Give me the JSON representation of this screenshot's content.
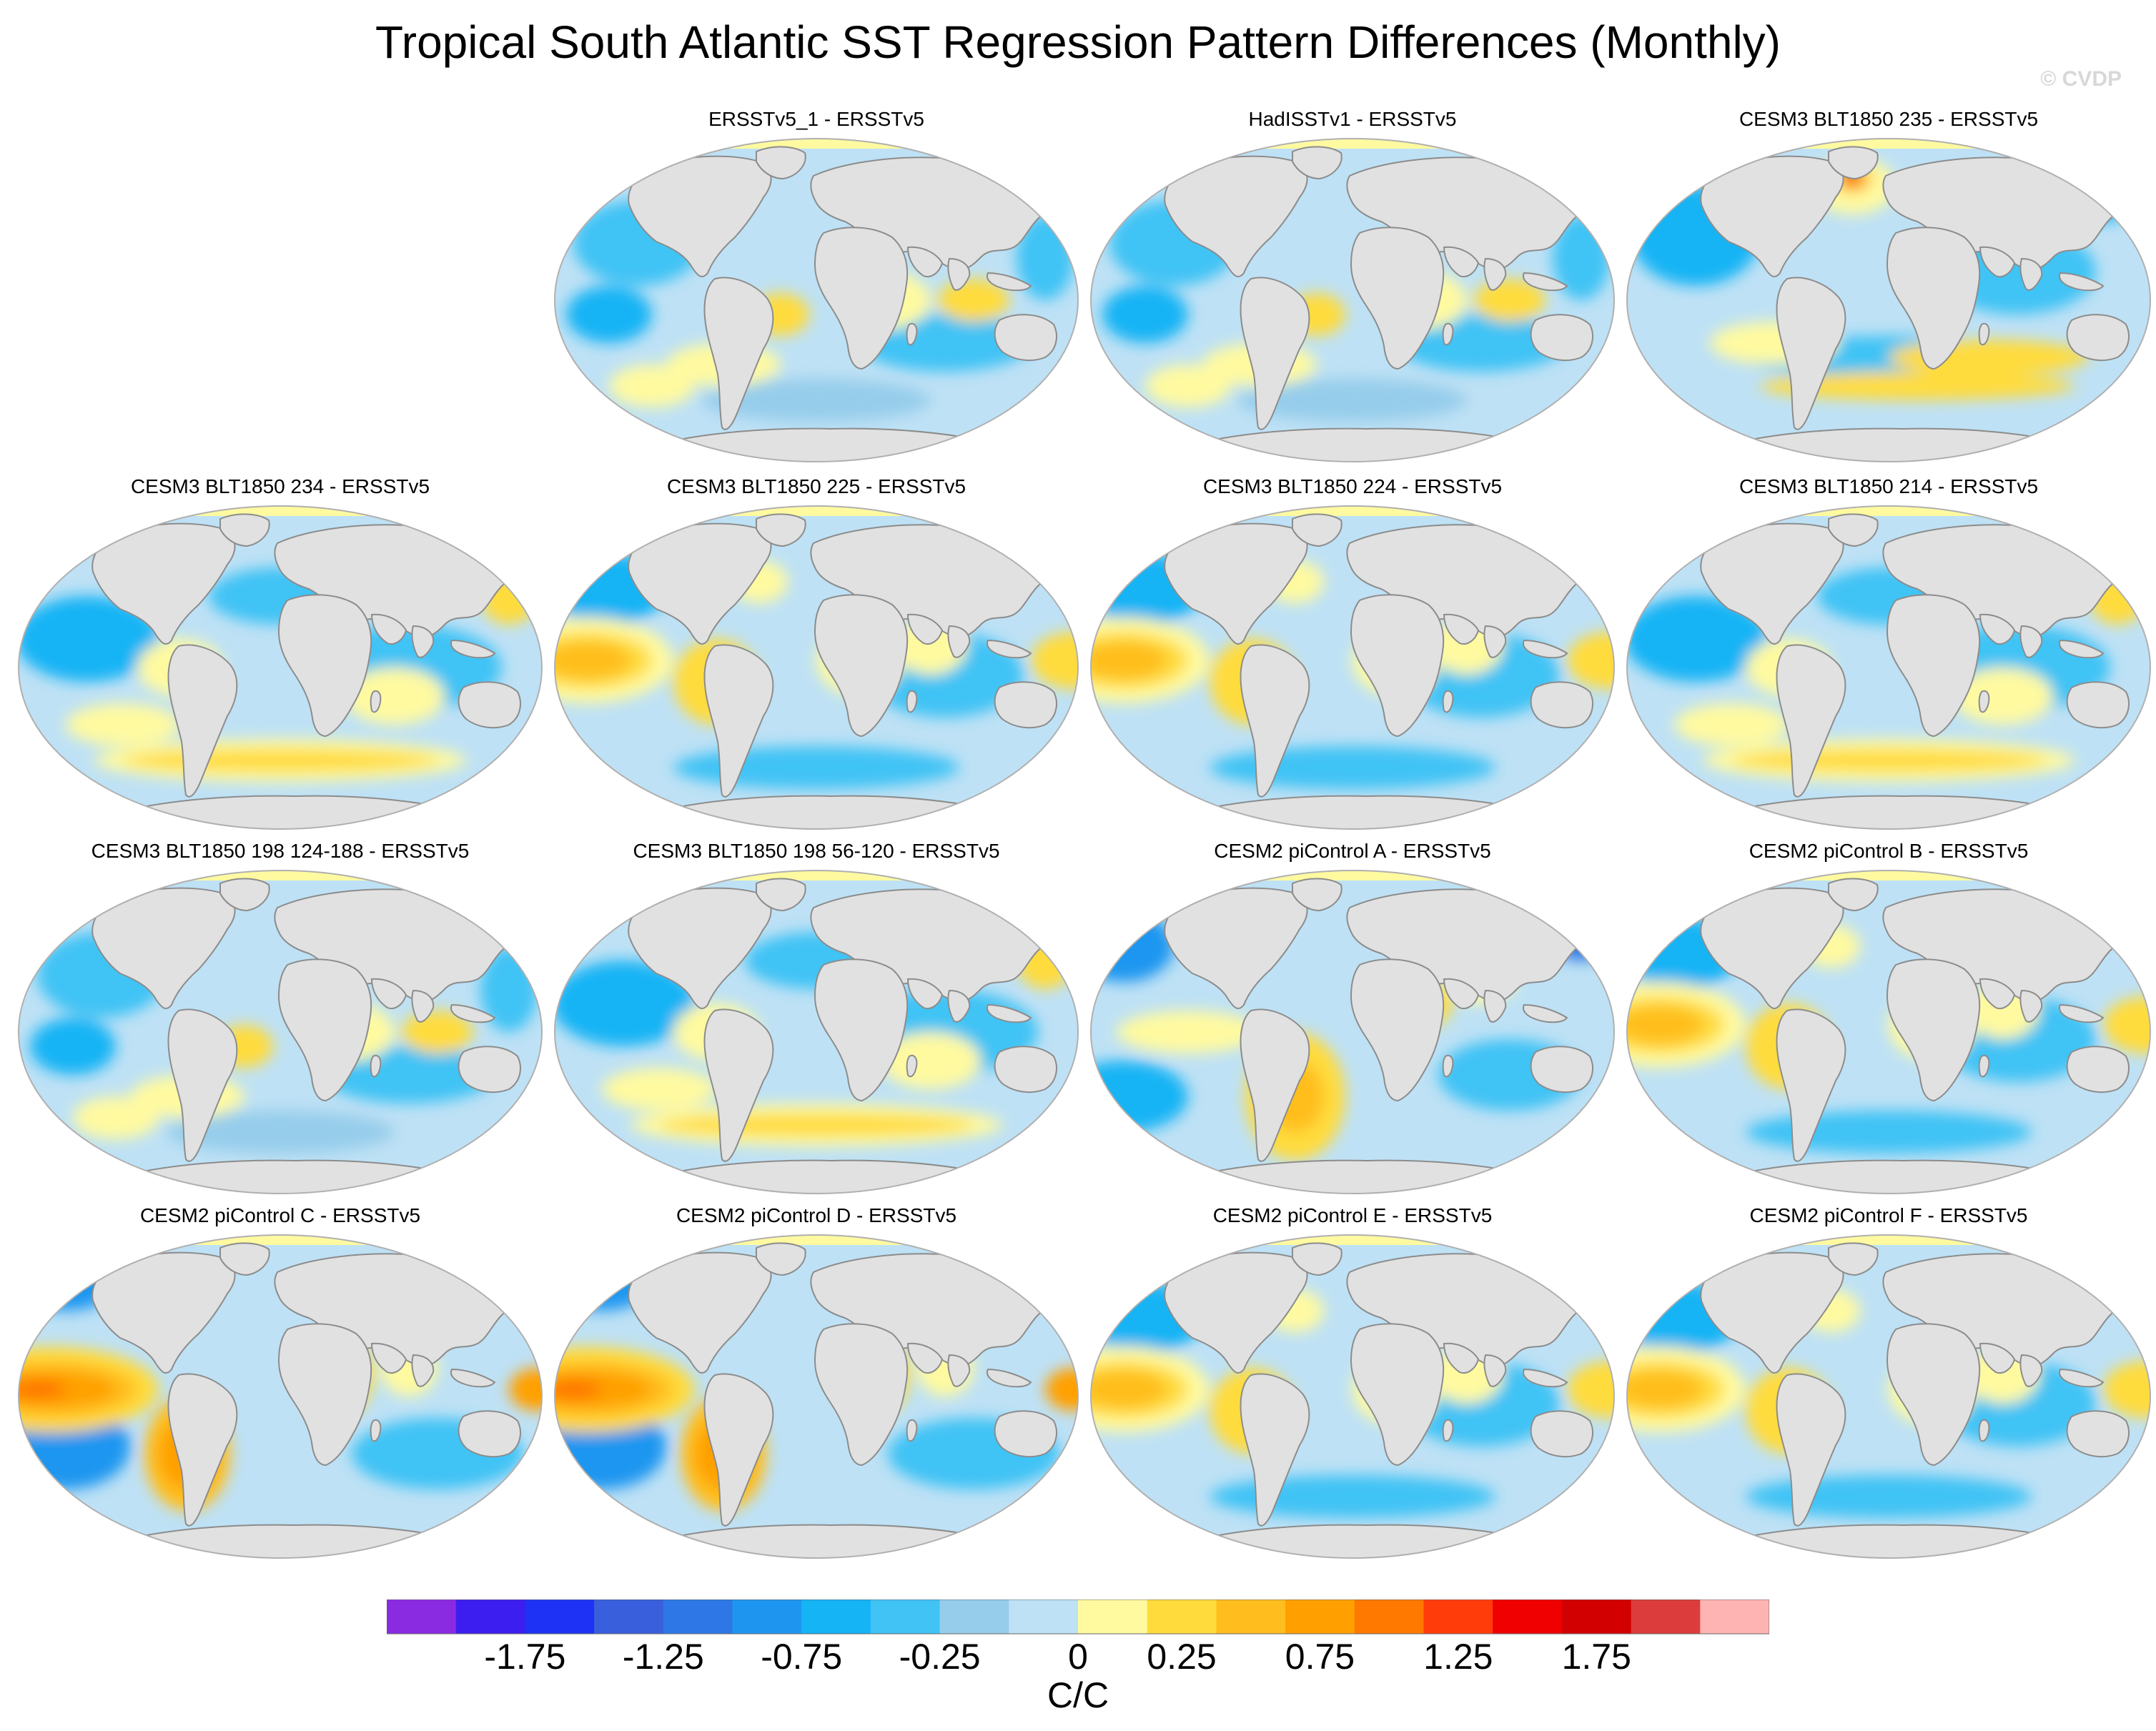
{
  "title": "Tropical South Atlantic SST Regression Pattern Differences (Monthly)",
  "watermark": "© CVDP",
  "panels": [
    {
      "title": "ERSSTv5_1 - ERSSTv5",
      "pattern": "weak-mixed"
    },
    {
      "title": "HadISSTv1 - ERSSTv5",
      "pattern": "weak-mixed"
    },
    {
      "title": "CESM3 BLT1850 235 - ERSSTv5",
      "pattern": "north-atlantic-hotspot"
    },
    {
      "title": "CESM3 BLT1850 234 - ERSSTv5",
      "pattern": "southern-warm-band"
    },
    {
      "title": "CESM3 BLT1850 225 - ERSSTv5",
      "pattern": "east-pacific-warm"
    },
    {
      "title": "CESM3 BLT1850 224 - ERSSTv5",
      "pattern": "east-pacific-warm"
    },
    {
      "title": "CESM3 BLT1850 214 - ERSSTv5",
      "pattern": "southern-warm-band"
    },
    {
      "title": "CESM3 BLT1850 198 124-188 - ERSSTv5",
      "pattern": "weak-mixed"
    },
    {
      "title": "CESM3 BLT1850 198 56-120 - ERSSTv5",
      "pattern": "southern-warm-band"
    },
    {
      "title": "CESM2 piControl A - ERSSTv5",
      "pattern": "atlantic-warm"
    },
    {
      "title": "CESM2 piControl B - ERSSTv5",
      "pattern": "east-pacific-warm"
    },
    {
      "title": "CESM2 piControl C - ERSSTv5",
      "pattern": "strong-pacific-warm"
    },
    {
      "title": "CESM2 piControl D - ERSSTv5",
      "pattern": "strong-pacific-warm"
    },
    {
      "title": "CESM2 piControl E - ERSSTv5",
      "pattern": "east-pacific-warm"
    },
    {
      "title": "CESM2 piControl F - ERSSTv5",
      "pattern": "east-pacific-warm"
    }
  ],
  "colorbar": {
    "colors": [
      "#8a2be2",
      "#3c1ef0",
      "#1e32f5",
      "#3a5fdc",
      "#2d78e6",
      "#1e96f0",
      "#14b4f5",
      "#41c3f5",
      "#96cdeb",
      "#bee1f5",
      "#fffaa0",
      "#ffdc3c",
      "#ffbe1e",
      "#ffa000",
      "#ff7800",
      "#ff3c0a",
      "#f00000",
      "#d20000",
      "#dc3c3c",
      "#ffb4b4"
    ],
    "tick_labels": [
      "-1.75",
      "-1.25",
      "-0.75",
      "-0.25",
      "0",
      "0.25",
      "0.75",
      "1.25",
      "1.75"
    ],
    "units": "C/C"
  },
  "colors": {
    "ocean_base": "#bee1f5",
    "land": "#e1e1e1",
    "coast": "#8c8c8c"
  }
}
